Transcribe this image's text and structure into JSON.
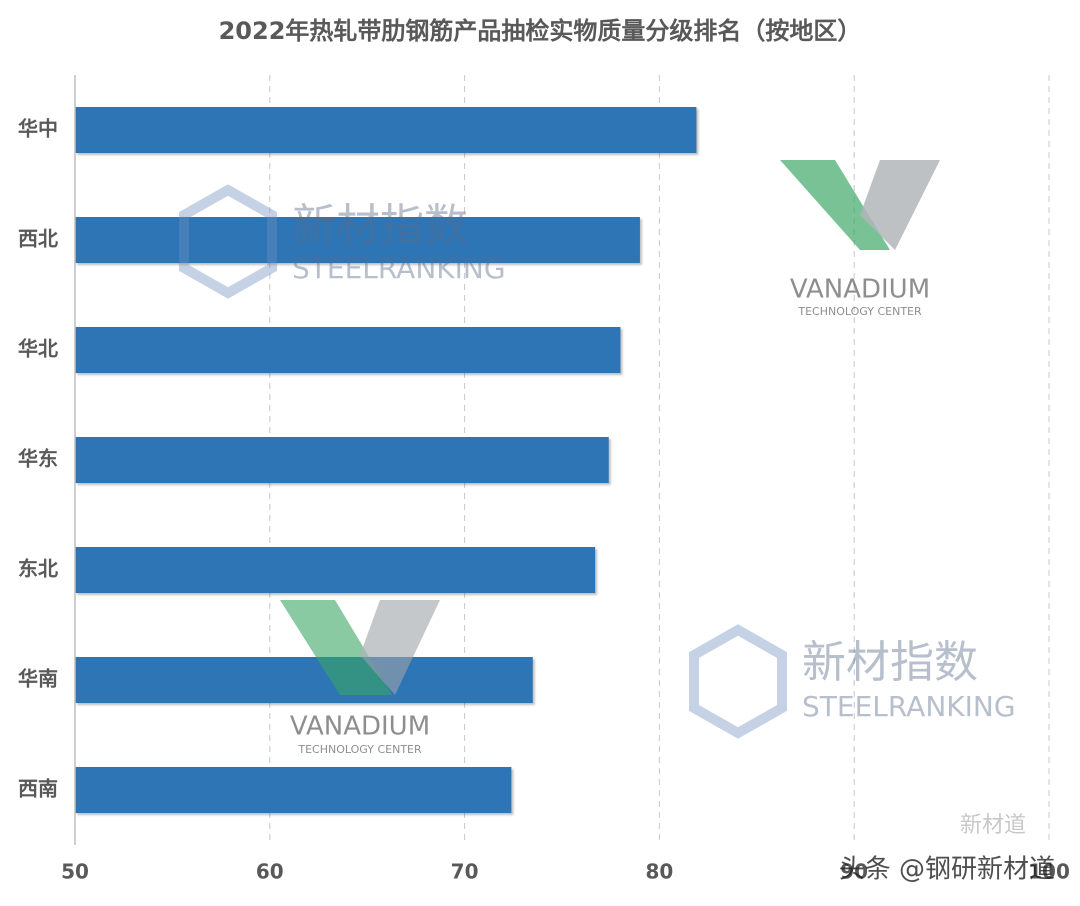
{
  "chart_data": {
    "type": "barh",
    "title": "2022年热轧带肋钢筋产品抽检实物质量分级排名（按地区）",
    "categories": [
      "华中",
      "西北",
      "华北",
      "华东",
      "东北",
      "华南",
      "西南"
    ],
    "values": [
      81.9,
      79.0,
      78.0,
      77.4,
      76.7,
      73.5,
      72.4
    ],
    "color": "#2e75b6",
    "xlim": [
      50,
      100
    ],
    "xticks": [
      50,
      60,
      70,
      80,
      90,
      100
    ],
    "grid": true
  },
  "watermarks": {
    "steelranking_cn": "新材指数",
    "steelranking_en": "STEELRANKING",
    "vanadium": "VANADIUM",
    "vanadium_sub": "TECHNOLOGY CENTER",
    "toutiao": "头条 @钢研新材道",
    "wechat": "新材道"
  }
}
